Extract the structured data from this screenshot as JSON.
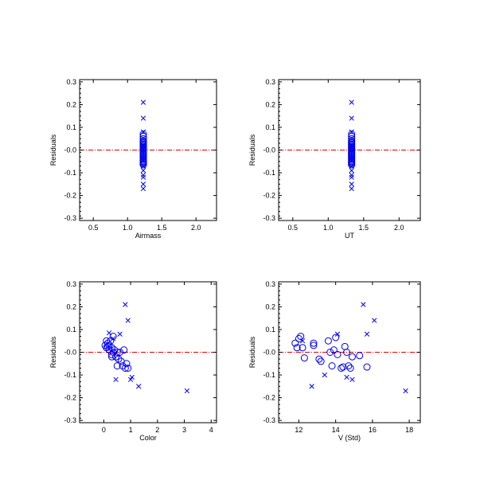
{
  "colors": {
    "marker": "#0000ee",
    "reference": "#e00000",
    "axis": "#000000",
    "background": "#ffffff"
  },
  "chart_data": [
    {
      "type": "scatter",
      "xlabel": "Airmass",
      "ylabel": "Residuals",
      "xlim": [
        0.3,
        2.3
      ],
      "ylim": [
        -0.31,
        0.31
      ],
      "xticks": [
        0.5,
        1.0,
        1.5,
        2.0
      ],
      "xtick_labels": [
        "0.5",
        "1.0",
        "1.5",
        "2.0"
      ],
      "yticks": [
        -0.3,
        -0.2,
        -0.1,
        0.0,
        0.1,
        0.2,
        0.3
      ],
      "ytick_labels": [
        "-0.3",
        "-0.2",
        "-0.1",
        "-0.0",
        "0.1",
        "0.2",
        "0.3"
      ],
      "reference_y": 0.0,
      "grid": false,
      "series": [
        {
          "marker": "circle",
          "x": [
            1.23,
            1.23,
            1.23,
            1.23,
            1.23,
            1.23,
            1.23,
            1.23,
            1.23,
            1.23,
            1.23,
            1.23,
            1.23,
            1.23,
            1.23,
            1.23,
            1.23,
            1.23,
            1.23,
            1.23,
            1.23,
            1.23,
            1.23,
            1.23,
            1.23
          ],
          "y": [
            0.07,
            0.06,
            0.05,
            0.04,
            0.035,
            0.03,
            0.025,
            0.02,
            0.015,
            0.01,
            0.005,
            0.0,
            -0.005,
            -0.01,
            -0.015,
            -0.02,
            -0.025,
            -0.03,
            -0.035,
            -0.04,
            -0.045,
            -0.05,
            -0.055,
            -0.06,
            -0.065
          ]
        },
        {
          "marker": "cross",
          "x": [
            1.23,
            1.23,
            1.23,
            1.23,
            1.23,
            1.23,
            1.23,
            1.23,
            1.23,
            1.23
          ],
          "y": [
            0.21,
            0.14,
            0.08,
            -0.11,
            -0.12,
            -0.15,
            -0.17,
            -0.07,
            0.02,
            -0.09
          ]
        }
      ]
    },
    {
      "type": "scatter",
      "xlabel": "UT",
      "ylabel": "Residuals",
      "xlim": [
        0.3,
        2.3
      ],
      "ylim": [
        -0.31,
        0.31
      ],
      "xticks": [
        0.5,
        1.0,
        1.5,
        2.0
      ],
      "xtick_labels": [
        "0.5",
        "1.0",
        "1.5",
        "2.0"
      ],
      "yticks": [
        -0.3,
        -0.2,
        -0.1,
        0.0,
        0.1,
        0.2,
        0.3
      ],
      "ytick_labels": [
        "-0.3",
        "-0.2",
        "-0.1",
        "-0.0",
        "0.1",
        "0.2",
        "0.3"
      ],
      "reference_y": 0.0,
      "grid": false,
      "series": [
        {
          "marker": "circle",
          "x": [
            1.33,
            1.33,
            1.33,
            1.33,
            1.33,
            1.33,
            1.33,
            1.33,
            1.33,
            1.33,
            1.33,
            1.33,
            1.33,
            1.33,
            1.33,
            1.33,
            1.33,
            1.33,
            1.33,
            1.33,
            1.33,
            1.33,
            1.33,
            1.33,
            1.33
          ],
          "y": [
            0.07,
            0.06,
            0.05,
            0.04,
            0.035,
            0.03,
            0.025,
            0.02,
            0.015,
            0.01,
            0.005,
            0.0,
            -0.005,
            -0.01,
            -0.015,
            -0.02,
            -0.025,
            -0.03,
            -0.035,
            -0.04,
            -0.045,
            -0.05,
            -0.055,
            -0.06,
            -0.065
          ]
        },
        {
          "marker": "cross",
          "x": [
            1.33,
            1.33,
            1.33,
            1.33,
            1.33,
            1.33,
            1.33,
            1.33,
            1.33,
            1.33
          ],
          "y": [
            0.21,
            0.14,
            0.08,
            -0.11,
            -0.12,
            -0.15,
            -0.17,
            -0.07,
            0.02,
            -0.09
          ]
        }
      ]
    },
    {
      "type": "scatter",
      "xlabel": "Color",
      "ylabel": "Residuals",
      "xlim": [
        -0.9,
        4.2
      ],
      "ylim": [
        -0.31,
        0.31
      ],
      "xticks": [
        0,
        1,
        2,
        3,
        4
      ],
      "xtick_labels": [
        "0",
        "1",
        "2",
        "3",
        "4"
      ],
      "yticks": [
        -0.3,
        -0.2,
        -0.1,
        0.0,
        0.1,
        0.2,
        0.3
      ],
      "ytick_labels": [
        "-0.3",
        "-0.2",
        "-0.1",
        "-0.0",
        "0.1",
        "0.2",
        "0.3"
      ],
      "reference_y": 0.0,
      "grid": false,
      "series": [
        {
          "marker": "circle",
          "x": [
            0.05,
            0.1,
            0.1,
            0.15,
            0.2,
            0.2,
            0.25,
            0.3,
            0.3,
            0.35,
            0.35,
            0.4,
            0.45,
            0.5,
            0.55,
            0.6,
            0.65,
            0.7,
            0.75,
            0.8,
            0.85,
            0.9,
            0.3,
            0.15,
            0.5
          ],
          "y": [
            0.03,
            0.05,
            0.02,
            0.04,
            0.03,
            0.01,
            0.05,
            0.02,
            -0.01,
            0.07,
            0.0,
            0.01,
            -0.02,
            -0.06,
            -0.03,
            0.0,
            -0.04,
            -0.06,
            0.01,
            -0.07,
            -0.05,
            -0.07,
            -0.02,
            0.025,
            0.0
          ]
        },
        {
          "marker": "cross",
          "x": [
            0.8,
            0.9,
            0.2,
            0.6,
            1.05,
            1.0,
            1.3,
            3.1,
            0.45,
            0.35
          ],
          "y": [
            0.21,
            0.14,
            0.085,
            0.08,
            -0.11,
            -0.12,
            -0.15,
            -0.17,
            -0.12,
            0.06
          ]
        }
      ]
    },
    {
      "type": "scatter",
      "xlabel": "V (Std)",
      "ylabel": "Residuals",
      "xlim": [
        10.9,
        18.6
      ],
      "ylim": [
        -0.31,
        0.31
      ],
      "xticks": [
        12,
        14,
        16,
        18
      ],
      "xtick_labels": [
        "12",
        "14",
        "16",
        "18"
      ],
      "yticks": [
        -0.3,
        -0.2,
        -0.1,
        0.0,
        0.1,
        0.2,
        0.3
      ],
      "ytick_labels": [
        "-0.3",
        "-0.2",
        "-0.1",
        "-0.0",
        "0.1",
        "0.2",
        "0.3"
      ],
      "reference_y": 0.0,
      "grid": false,
      "series": [
        {
          "marker": "circle",
          "x": [
            11.8,
            11.9,
            12.0,
            12.1,
            12.2,
            12.3,
            12.8,
            12.8,
            13.1,
            13.2,
            13.6,
            13.7,
            13.8,
            13.9,
            14.0,
            14.1,
            14.3,
            14.4,
            14.5,
            14.6,
            14.7,
            14.8,
            14.9,
            15.3,
            15.7
          ],
          "y": [
            0.04,
            0.02,
            0.06,
            0.07,
            0.02,
            -0.025,
            0.04,
            0.03,
            -0.03,
            -0.04,
            0.05,
            0.0,
            -0.06,
            0.01,
            0.065,
            -0.01,
            -0.07,
            -0.065,
            0.025,
            0.0,
            -0.06,
            -0.07,
            -0.02,
            -0.015,
            -0.065
          ]
        },
        {
          "marker": "cross",
          "x": [
            15.5,
            15.7,
            16.1,
            14.1,
            13.4,
            12.7,
            14.6,
            14.9,
            17.8,
            12.2
          ],
          "y": [
            0.21,
            0.08,
            0.14,
            0.08,
            -0.1,
            -0.15,
            -0.11,
            -0.12,
            -0.17,
            0.05
          ]
        }
      ]
    }
  ]
}
